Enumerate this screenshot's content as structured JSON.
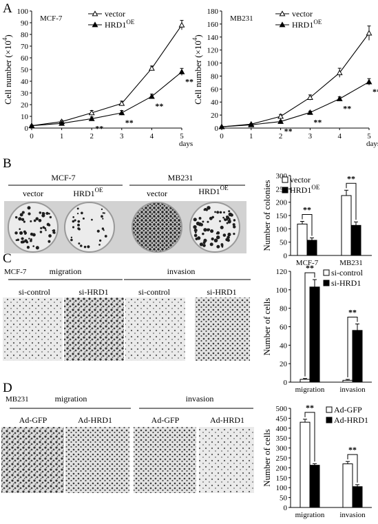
{
  "panels": {
    "A": {
      "label": "A"
    },
    "B": {
      "label": "B",
      "group_left": "MCF-7",
      "group_right": "MB231",
      "dish_labels": [
        {
          "text": "vector",
          "sup": ""
        },
        {
          "text": "HRD1",
          "sup": "OE"
        },
        {
          "text": "vector",
          "sup": ""
        },
        {
          "text": "HRD1",
          "sup": "OE"
        }
      ]
    },
    "C": {
      "label": "C",
      "cell_line": "MCF-7",
      "section_left": "migration",
      "section_right": "invasion",
      "image_labels": [
        "si-control",
        "si-HRD1",
        "si-control",
        "si-HRD1"
      ]
    },
    "D": {
      "label": "D",
      "cell_line": "MB231",
      "section_left": "migration",
      "section_right": "invasion",
      "image_labels": [
        "Ad-GFP",
        "Ad-HRD1",
        "Ad-GFP",
        "Ad-HRD1"
      ]
    }
  },
  "colors": {
    "line": "#000000",
    "open_marker": "#ffffff",
    "filled_marker": "#000000",
    "dish_bg": "#d9d9d9",
    "membrane_bg": "#e8e8e8"
  },
  "chart_data": [
    {
      "type": "line",
      "title": "MCF-7",
      "xlabel": "days",
      "ylabel": "Cell number (×10",
      "ylabel_sup": "4",
      "ylabel_close": ")",
      "x": [
        0,
        1,
        2,
        3,
        4,
        5
      ],
      "xlim": [
        0,
        5
      ],
      "ylim": [
        0,
        100
      ],
      "yticks": [
        0,
        10,
        20,
        30,
        40,
        50,
        60,
        70,
        80,
        90,
        100
      ],
      "series": [
        {
          "name": "vector",
          "name_sup": "",
          "marker": "open-triangle",
          "values": [
            2,
            5.5,
            13,
            21,
            51,
            88
          ],
          "errors": [
            0.5,
            1,
            2,
            2,
            2,
            4
          ]
        },
        {
          "name": "HRD1",
          "name_sup": "OE",
          "marker": "filled-triangle",
          "values": [
            2,
            4,
            8,
            13,
            27,
            48
          ],
          "errors": [
            0.5,
            1,
            1.5,
            2,
            2,
            3
          ]
        }
      ],
      "annotations": [
        {
          "x": 2,
          "text": "**"
        },
        {
          "x": 3,
          "text": "**"
        },
        {
          "x": 4,
          "text": "**"
        },
        {
          "x": 5,
          "text": "**"
        }
      ]
    },
    {
      "type": "line",
      "title": "MB231",
      "xlabel": "days",
      "ylabel": "Cell number (×10",
      "ylabel_sup": "4",
      "ylabel_close": ")",
      "x": [
        0,
        1,
        2,
        3,
        4,
        5
      ],
      "xlim": [
        0,
        5
      ],
      "ylim": [
        0,
        180
      ],
      "yticks": [
        0,
        20,
        40,
        60,
        80,
        100,
        120,
        140,
        160,
        180
      ],
      "series": [
        {
          "name": "vector",
          "name_sup": "",
          "marker": "open-triangle",
          "values": [
            2,
            6,
            18,
            47,
            85,
            146
          ],
          "errors": [
            0.5,
            1,
            3,
            4,
            7,
            11
          ]
        },
        {
          "name": "HRD1",
          "name_sup": "OE",
          "marker": "filled-triangle",
          "values": [
            2,
            5,
            10,
            24,
            45,
            71
          ],
          "errors": [
            0.5,
            1,
            1.5,
            2,
            3,
            5
          ]
        }
      ],
      "annotations": [
        {
          "x": 2,
          "text": "**"
        },
        {
          "x": 3,
          "text": "**"
        },
        {
          "x": 4,
          "text": "**"
        },
        {
          "x": 5,
          "text": "**"
        }
      ]
    },
    {
      "type": "bar",
      "ylabel": "Number of colonies",
      "ylim": [
        0,
        300
      ],
      "yticks": [
        0,
        50,
        100,
        150,
        200,
        250,
        300
      ],
      "categories": [
        "MCF-7",
        "MB231"
      ],
      "series": [
        {
          "name": "vector",
          "name_sup": "",
          "fill": "white",
          "values": [
            118,
            225
          ],
          "errors": [
            10,
            20
          ]
        },
        {
          "name": "HRD1",
          "name_sup": "OE",
          "fill": "black",
          "values": [
            57,
            113
          ],
          "errors": [
            9,
            13
          ]
        }
      ],
      "annotations": [
        {
          "category": 0,
          "text": "**"
        },
        {
          "category": 1,
          "text": "**"
        }
      ]
    },
    {
      "type": "bar",
      "ylabel": "Number of cells",
      "ylim": [
        0,
        120
      ],
      "yticks": [
        0,
        20,
        40,
        60,
        80,
        100,
        120
      ],
      "categories": [
        "migration",
        "invasion"
      ],
      "series": [
        {
          "name": "si-control",
          "name_sup": "",
          "fill": "white",
          "values": [
            3,
            2
          ],
          "errors": [
            1,
            1
          ]
        },
        {
          "name": "si-HRD1",
          "name_sup": "",
          "fill": "black",
          "values": [
            103,
            56
          ],
          "errors": [
            8,
            7
          ]
        }
      ],
      "annotations": [
        {
          "category": 0,
          "text": "**"
        },
        {
          "category": 1,
          "text": "**"
        }
      ]
    },
    {
      "type": "bar",
      "ylabel": "Number of cells",
      "ylim": [
        0,
        500
      ],
      "yticks": [
        0,
        50,
        100,
        150,
        200,
        250,
        300,
        350,
        400,
        450,
        500
      ],
      "categories": [
        "migration",
        "invasion"
      ],
      "series": [
        {
          "name": "Ad-GFP",
          "name_sup": "",
          "fill": "white",
          "values": [
            430,
            220
          ],
          "errors": [
            15,
            12
          ]
        },
        {
          "name": "Ad-HRD1",
          "name_sup": "",
          "fill": "black",
          "values": [
            213,
            105
          ],
          "errors": [
            8,
            10
          ]
        }
      ],
      "annotations": [
        {
          "category": 0,
          "text": "**"
        },
        {
          "category": 1,
          "text": "**"
        }
      ]
    }
  ]
}
